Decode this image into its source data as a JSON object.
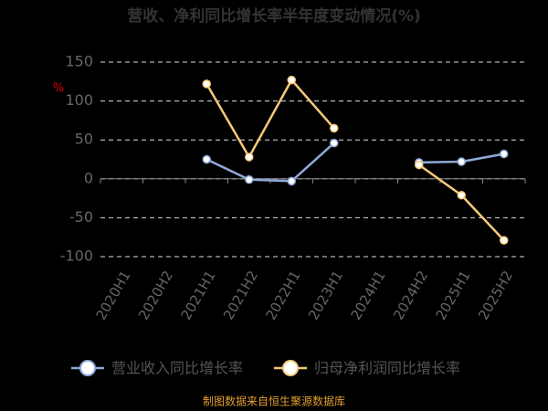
{
  "chart_data": {
    "type": "line",
    "title": "营收、净利同比增长率半年度变动情况(%)",
    "y_unit": "%",
    "source": "制图数据来自恒生聚源数据库",
    "categories": [
      "2020H1",
      "2020H2",
      "2021H1",
      "2021H2",
      "2022H1",
      "2023H1",
      "2024H1",
      "2024H2",
      "2025H1",
      "2025H2"
    ],
    "series": [
      {
        "name": "营业收入同比增长率",
        "color": "#8fa9d8",
        "values": [
          null,
          null,
          25,
          -1,
          -3,
          46,
          null,
          21,
          22,
          32
        ]
      },
      {
        "name": "归母净利润同比增长率",
        "color": "#f5c97a",
        "values": [
          null,
          null,
          122,
          28,
          127,
          65,
          null,
          18,
          -21,
          -79
        ]
      }
    ],
    "ylim": [
      -100,
      150
    ],
    "yticks": [
      -100,
      -50,
      0,
      50,
      100,
      150
    ],
    "yticks_display": null,
    "grid": true,
    "legend": "bottom"
  }
}
